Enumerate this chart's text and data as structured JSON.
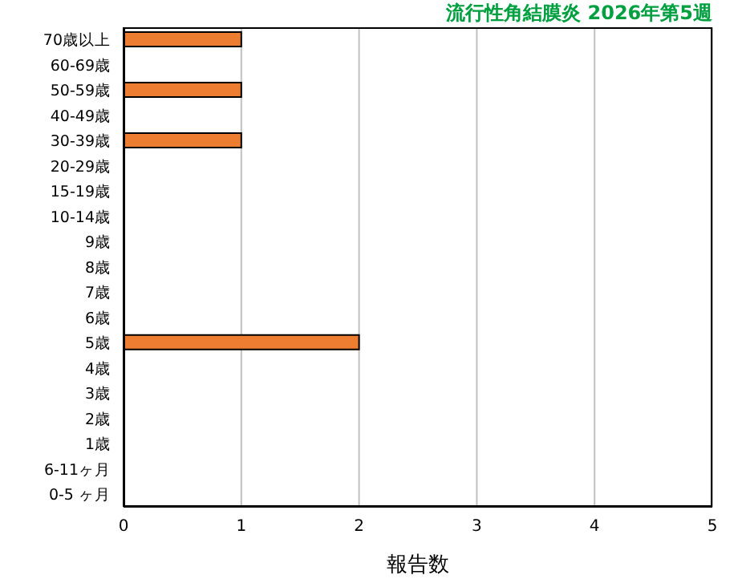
{
  "chart_data": {
    "type": "bar",
    "orientation": "horizontal",
    "title": "流行性角結膜炎 2026年第5週",
    "xlabel": "報告数",
    "categories": [
      "70歳以上",
      "60-69歳",
      "50-59歳",
      "40-49歳",
      "30-39歳",
      "20-29歳",
      "15-19歳",
      "10-14歳",
      "9歳",
      "8歳",
      "7歳",
      "6歳",
      "5歳",
      "4歳",
      "3歳",
      "2歳",
      "1歳",
      "6-11ヶ月",
      "0-5 ヶ月"
    ],
    "values": [
      1,
      0,
      1,
      0,
      1,
      0,
      0,
      0,
      0,
      0,
      0,
      0,
      2,
      0,
      0,
      0,
      0,
      0,
      0
    ],
    "color": "#ed7d31",
    "xlim": [
      0,
      5
    ],
    "xticks": [
      0,
      1,
      2,
      3,
      4,
      5
    ],
    "grid": "x"
  }
}
